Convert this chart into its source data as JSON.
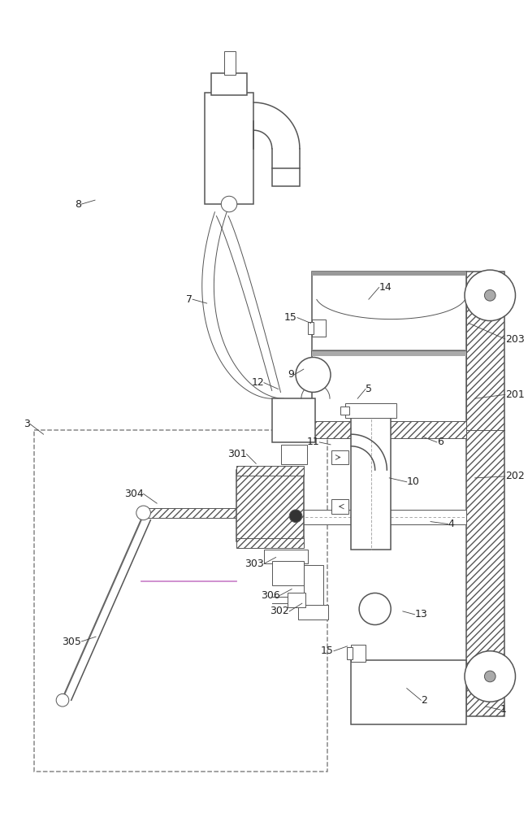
{
  "fig_width": 6.5,
  "fig_height": 10.0,
  "dpi": 100,
  "bg_color": "#ffffff",
  "lc": "#555555",
  "lw_thin": 0.7,
  "lw_med": 1.1,
  "lw_thick": 1.5
}
